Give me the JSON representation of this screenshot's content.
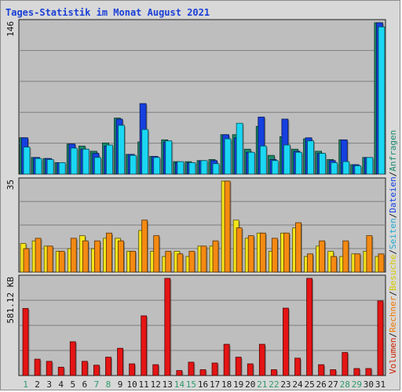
{
  "chart_data": {
    "type": "bar",
    "title": "Tages-Statistik im Monat August 2021",
    "categories": [
      "1",
      "2",
      "3",
      "4",
      "5",
      "6",
      "7",
      "8",
      "9",
      "10",
      "11",
      "12",
      "13",
      "14",
      "15",
      "16",
      "17",
      "18",
      "19",
      "20",
      "21",
      "22",
      "23",
      "24",
      "25",
      "26",
      "27",
      "28",
      "29",
      "30",
      "31"
    ],
    "weekend_days": [
      "1",
      "7",
      "8",
      "14",
      "15",
      "21",
      "22",
      "28",
      "29"
    ],
    "grid": true,
    "panels": [
      {
        "name": "anfragen-dateien-seiten",
        "ymax_label": "146",
        "ylim": [
          0,
          146
        ],
        "series": [
          {
            "name": "Anfragen",
            "color": "#1b8a6b",
            "values": [
              35,
              16,
              15,
              11,
              29,
              27,
              22,
              30,
              54,
              19,
              31,
              17,
              33,
              12,
              12,
              13,
              14,
              38,
              38,
              24,
              46,
              18,
              36,
              24,
              34,
              22,
              14,
              33,
              9,
              16,
              146
            ]
          },
          {
            "name": "Dateien",
            "color": "#1540e0",
            "values": [
              35,
              16,
              15,
              11,
              29,
              24,
              20,
              27,
              53,
              19,
              68,
              17,
              31,
              11,
              11,
              13,
              13,
              38,
              35,
              21,
              55,
              14,
              53,
              22,
              35,
              20,
              13,
              33,
              9,
              16,
              146
            ]
          },
          {
            "name": "Seiten",
            "color": "#1ad7f3",
            "values": [
              26,
              15,
              14,
              11,
              25,
              24,
              16,
              28,
              47,
              18,
              43,
              16,
              32,
              12,
              11,
              13,
              10,
              34,
              49,
              21,
              27,
              13,
              28,
              21,
              32,
              20,
              11,
              12,
              8,
              16,
              142
            ]
          }
        ]
      },
      {
        "name": "besuche-rechner",
        "ymax_label": "35",
        "ylim": [
          0,
          35
        ],
        "series": [
          {
            "name": "Besuche",
            "color": "#f5e41a",
            "values": [
              11,
              12,
              10,
              8,
              9,
              14,
              9,
              13,
              13,
              8,
              16,
              8,
              6,
              8,
              6,
              10,
              10,
              35,
              20,
              13,
              15,
              8,
              15,
              17,
              6,
              10,
              8,
              6,
              7,
              8,
              6
            ]
          },
          {
            "name": "Rechner",
            "color": "#f58a12",
            "values": [
              9,
              13,
              10,
              8,
              13,
              12,
              12,
              15,
              12,
              8,
              20,
              14,
              8,
              7,
              8,
              10,
              12,
              35,
              17,
              14,
              15,
              13,
              15,
              19,
              7,
              12,
              6,
              12,
              7,
              14,
              7
            ]
          }
        ]
      },
      {
        "name": "volumen",
        "ymax_label": "581.12 KB",
        "ylim": [
          0,
          581.12
        ],
        "series": [
          {
            "name": "Volumen",
            "color": "#e51414",
            "values": [
              401,
              98,
              85,
              50,
              202,
              85,
              62,
              110,
              163,
              70,
              357,
              65,
              581,
              30,
              80,
              35,
              75,
              187,
              110,
              70,
              187,
              35,
              403,
              104,
              581,
              65,
              35,
              138,
              42,
              42,
              446
            ]
          }
        ]
      }
    ],
    "legend_right": [
      {
        "text": "Volumen",
        "color": "#cc2200"
      },
      {
        "text": "Rechner",
        "color": "#ee7700"
      },
      {
        "text": "Besuche",
        "color": "#d5c800"
      },
      {
        "text": "Seiten",
        "color": "#22aacc"
      },
      {
        "text": "Dateien",
        "color": "#1540e0"
      },
      {
        "text": "Anfragen",
        "color": "#1b8a6b"
      }
    ],
    "legend_separator": "/"
  }
}
